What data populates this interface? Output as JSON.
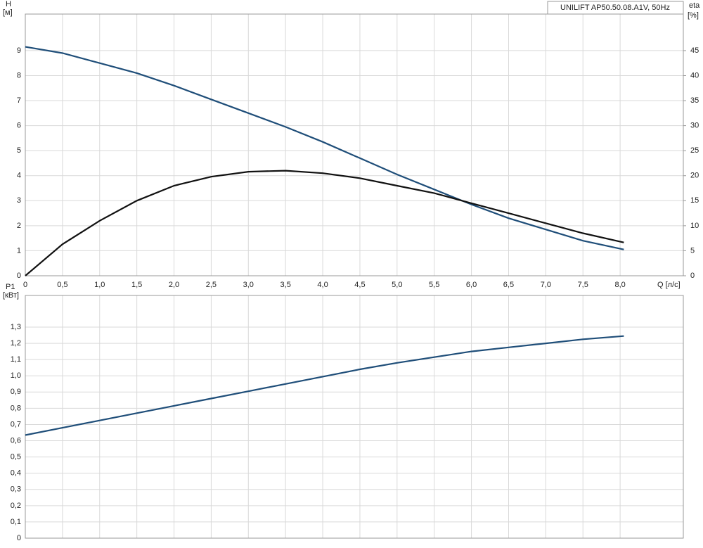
{
  "chart_data": [
    {
      "type": "line",
      "title": "UNILIFT AP50.50.08.A1V, 50Hz",
      "y_label": "H",
      "y_unit": "[м]",
      "y2_label": "eta",
      "y2_unit": "[%]",
      "x_label": "Q [л/с]",
      "x": [
        0,
        0.5,
        1.0,
        1.5,
        2.0,
        2.5,
        3.0,
        3.5,
        4.0,
        4.5,
        5.0,
        5.5,
        6.0,
        6.5,
        7.0,
        7.5,
        8.05
      ],
      "series": [
        {
          "color": "#1f4e79",
          "values": [
            9.15,
            8.9,
            8.5,
            8.1,
            7.6,
            7.05,
            6.5,
            5.95,
            5.35,
            4.7,
            4.05,
            3.45,
            2.85,
            2.3,
            1.85,
            1.4,
            1.05
          ]
        },
        {
          "color": "#111111",
          "axis": "y2",
          "values": [
            0,
            6.3,
            11,
            15,
            18,
            19.8,
            20.8,
            21,
            20.5,
            19.5,
            18,
            16.5,
            14.5,
            12.5,
            10.5,
            8.5,
            6.65
          ]
        }
      ],
      "xlim": [
        0,
        8.85
      ],
      "xticks": [
        0,
        {
          "value": 0.5,
          "label": "0,5"
        },
        {
          "value": 1.0,
          "label": "1,0"
        },
        {
          "value": 1.5,
          "label": "1,5"
        },
        {
          "value": 2.0,
          "label": "2,0"
        },
        {
          "value": 2.5,
          "label": "2,5"
        },
        {
          "value": 3.0,
          "label": "3,0"
        },
        {
          "value": 3.5,
          "label": "3,5"
        },
        {
          "value": 4.0,
          "label": "4,0"
        },
        {
          "value": 4.5,
          "label": "4,5"
        },
        {
          "value": 5.0,
          "label": "5,0"
        },
        {
          "value": 5.5,
          "label": "5,5"
        },
        {
          "value": 6.0,
          "label": "6,0"
        },
        {
          "value": 6.5,
          "label": "6,5"
        },
        {
          "value": 7.0,
          "label": "7,0"
        },
        {
          "value": 7.5,
          "label": "7,5"
        },
        {
          "value": 8.0,
          "label": "8,0"
        }
      ],
      "ylim": [
        0,
        10.46
      ],
      "yticks": [
        0,
        1,
        2,
        3,
        4,
        5,
        6,
        7,
        8,
        9
      ],
      "y2lim": [
        0,
        52.3
      ],
      "y2ticks": [
        0,
        5,
        10,
        15,
        20,
        25,
        30,
        35,
        40,
        45
      ],
      "grid": true
    },
    {
      "type": "line",
      "y_label": "P1",
      "y_unit": "[кВт]",
      "x": [
        0,
        0.5,
        1.0,
        1.5,
        2.0,
        2.5,
        3.0,
        3.5,
        4.0,
        4.5,
        5.0,
        5.5,
        6.0,
        6.5,
        7.0,
        7.5,
        8.05
      ],
      "series": [
        {
          "color": "#1f4e79",
          "values": [
            0.635,
            0.68,
            0.725,
            0.77,
            0.815,
            0.86,
            0.905,
            0.95,
            0.995,
            1.04,
            1.08,
            1.115,
            1.15,
            1.175,
            1.2,
            1.225,
            1.245
          ]
        }
      ],
      "xlim": [
        0,
        8.85
      ],
      "xticks": [
        0,
        0.5,
        1.0,
        1.5,
        2.0,
        2.5,
        3.0,
        3.5,
        4.0,
        4.5,
        5.0,
        5.5,
        6.0,
        6.5,
        7.0,
        7.5,
        8.0
      ],
      "ylim": [
        0,
        1.495
      ],
      "yticks": [
        0,
        {
          "value": 0.1,
          "label": "0,1"
        },
        {
          "value": 0.2,
          "label": "0,2"
        },
        {
          "value": 0.3,
          "label": "0,3"
        },
        {
          "value": 0.4,
          "label": "0,4"
        },
        {
          "value": 0.5,
          "label": "0,5"
        },
        {
          "value": 0.6,
          "label": "0,6"
        },
        {
          "value": 0.7,
          "label": "0,7"
        },
        {
          "value": 0.8,
          "label": "0,8"
        },
        {
          "value": 0.9,
          "label": "0,9"
        },
        {
          "value": 1.0,
          "label": "1,0"
        },
        {
          "value": 1.1,
          "label": "1,1"
        },
        {
          "value": 1.2,
          "label": "1,2"
        },
        {
          "value": 1.3,
          "label": "1,3"
        }
      ],
      "grid": true
    }
  ]
}
